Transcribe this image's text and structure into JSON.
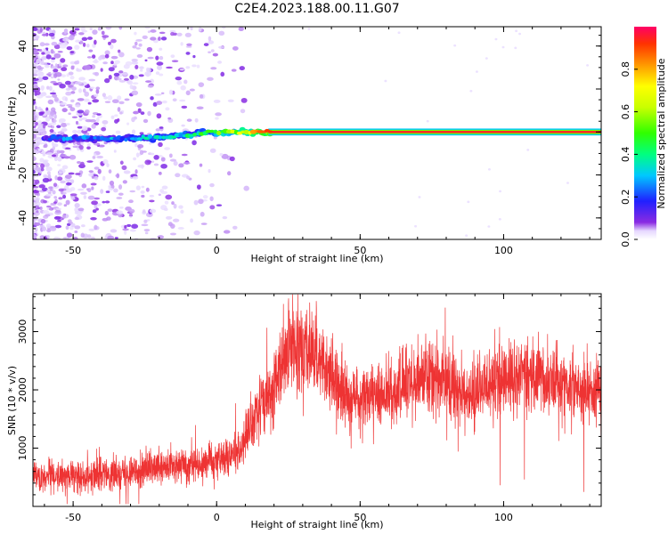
{
  "title": "C2E4.2023.188.00.11.G07",
  "chart_data": [
    {
      "type": "heatmap",
      "xlabel": "Height of straight line (km)",
      "ylabel": "Frequency (Hz)",
      "xlim": [
        -64,
        134
      ],
      "ylim": [
        -50,
        49
      ],
      "xticks": [
        -50,
        0,
        50,
        100
      ],
      "yticks": [
        -40,
        -20,
        0,
        20,
        40
      ],
      "colorbar": {
        "label": "Normalized spectral amplitude",
        "range": [
          0,
          1
        ],
        "ticks": [
          0.0,
          0.2,
          0.4,
          0.6,
          0.8
        ]
      },
      "ridge": [
        {
          "x": -55,
          "freq": -3,
          "amp": 0.2
        },
        {
          "x": -45,
          "freq": -3,
          "amp": 0.22
        },
        {
          "x": -35,
          "freq": -3,
          "amp": 0.25
        },
        {
          "x": -25,
          "freq": -3,
          "amp": 0.3
        },
        {
          "x": -15,
          "freq": -2,
          "amp": 0.35
        },
        {
          "x": -8,
          "freq": -1,
          "amp": 0.4
        },
        {
          "x": 0,
          "freq": 0,
          "amp": 0.5
        },
        {
          "x": 10,
          "freq": 0,
          "amp": 0.65
        },
        {
          "x": 20,
          "freq": 0,
          "amp": 0.95
        },
        {
          "x": 134,
          "freq": 0,
          "amp": 0.95
        }
      ]
    },
    {
      "type": "line",
      "xlabel": "Height of straight line (km)",
      "ylabel": "SNR (10 * v/v)",
      "xlim": [
        -64,
        134
      ],
      "ylim": [
        0,
        3650
      ],
      "xticks": [
        -50,
        0,
        50,
        100
      ],
      "yticks": [
        1000,
        2000,
        3000
      ],
      "color": "#ee3333",
      "trend": [
        {
          "x": -64,
          "mean": 500
        },
        {
          "x": -40,
          "mean": 550
        },
        {
          "x": -20,
          "mean": 650
        },
        {
          "x": 0,
          "mean": 800
        },
        {
          "x": 8,
          "mean": 950
        },
        {
          "x": 15,
          "mean": 1700
        },
        {
          "x": 22,
          "mean": 2300
        },
        {
          "x": 28,
          "mean": 2900
        },
        {
          "x": 35,
          "mean": 2600
        },
        {
          "x": 45,
          "mean": 1900
        },
        {
          "x": 52,
          "mean": 1800
        },
        {
          "x": 62,
          "mean": 2000
        },
        {
          "x": 72,
          "mean": 2300
        },
        {
          "x": 82,
          "mean": 2100
        },
        {
          "x": 88,
          "mean": 1800
        },
        {
          "x": 98,
          "mean": 2200
        },
        {
          "x": 110,
          "mean": 2300
        },
        {
          "x": 120,
          "mean": 2100
        },
        {
          "x": 134,
          "mean": 2000
        }
      ]
    }
  ]
}
